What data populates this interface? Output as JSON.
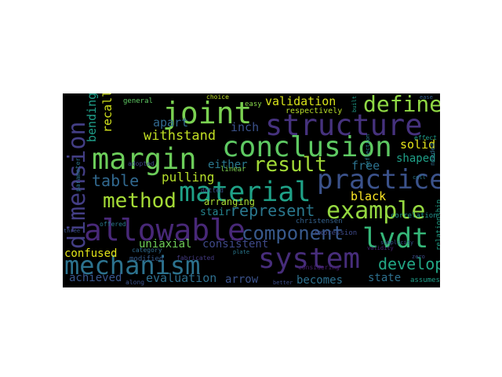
{
  "words": [
    {
      "text": "structure",
      "color": "#46327e"
    },
    {
      "text": "conclusion",
      "color": "#5ec962"
    },
    {
      "text": "joint",
      "color": "#7ad151"
    },
    {
      "text": "margin",
      "color": "#6ccd5a"
    },
    {
      "text": "material",
      "color": "#1fa187"
    },
    {
      "text": "practice",
      "color": "#3b528b"
    },
    {
      "text": "allowable",
      "color": "#482878"
    },
    {
      "text": "mechanism",
      "color": "#2c728e"
    },
    {
      "text": "system",
      "color": "#472d7b"
    },
    {
      "text": "example",
      "color": "#95d840"
    },
    {
      "text": "lvdt",
      "color": "#35b779"
    },
    {
      "text": "define",
      "color": "#8fd744"
    },
    {
      "text": "result",
      "color": "#a2da37"
    },
    {
      "text": "method",
      "color": "#a5db36"
    },
    {
      "text": "component",
      "color": "#38598c"
    },
    {
      "text": "dimension",
      "color": "#433e85"
    },
    {
      "text": "represent",
      "color": "#2a788e"
    },
    {
      "text": "develop",
      "color": "#22a785"
    },
    {
      "text": "table",
      "color": "#31688e"
    },
    {
      "text": "validation",
      "color": "#d8e219"
    },
    {
      "text": "withstand",
      "color": "#c2df23"
    },
    {
      "text": "pulling",
      "color": "#b5de2b"
    },
    {
      "text": "apart",
      "color": "#31688e"
    },
    {
      "text": "inch",
      "color": "#3b528b"
    },
    {
      "text": "either",
      "color": "#2a788e"
    },
    {
      "text": "bending",
      "color": "#1f9e89"
    },
    {
      "text": "recall",
      "color": "#d2e21b"
    },
    {
      "text": "free",
      "color": "#2c728e"
    },
    {
      "text": "solid",
      "color": "#e5e419"
    },
    {
      "text": "shaped",
      "color": "#1fa188"
    },
    {
      "text": "black",
      "color": "#fde725"
    },
    {
      "text": "arranging",
      "color": "#a8db34"
    },
    {
      "text": "stair",
      "color": "#25848e"
    },
    {
      "text": "uniaxial",
      "color": "#6ece58"
    },
    {
      "text": "consistent",
      "color": "#3e4989"
    },
    {
      "text": "confused",
      "color": "#e2e418"
    },
    {
      "text": "achieved",
      "color": "#39558c"
    },
    {
      "text": "evaluation",
      "color": "#2e6f8e"
    },
    {
      "text": "arrow",
      "color": "#3b528b"
    },
    {
      "text": "becomes",
      "color": "#2d708e"
    },
    {
      "text": "state",
      "color": "#2d708e"
    },
    {
      "text": "general",
      "color": "#5ec962"
    },
    {
      "text": "respectively",
      "color": "#b8de29"
    },
    {
      "text": "easy",
      "color": "#86d549"
    },
    {
      "text": "linear",
      "color": "#7fd34e"
    },
    {
      "text": "relationship",
      "color": "#1fa187"
    },
    {
      "text": "christensen",
      "color": "#34618d"
    },
    {
      "text": "expression",
      "color": "#3e4989"
    },
    {
      "text": "correlation",
      "color": "#21918c"
    },
    {
      "text": "modified",
      "color": "#365c8d"
    },
    {
      "text": "offered",
      "color": "#2a788e"
    },
    {
      "text": "considering",
      "color": "#481f70"
    },
    {
      "text": "assumes",
      "color": "#1f9e89"
    },
    {
      "text": "fabricated",
      "color": "#443a83"
    },
    {
      "text": "adopted",
      "color": "#3f4788"
    },
    {
      "text": "parameter",
      "color": "#2c728e"
    },
    {
      "text": "category",
      "color": "#2f6b8e"
    },
    {
      "text": "dotted",
      "color": "#3b528b"
    },
    {
      "text": "choice",
      "color": "#c0df25"
    },
    {
      "text": "along",
      "color": "#3b528b"
    },
    {
      "text": "effect",
      "color": "#1e9b8a"
    },
    {
      "text": "deflection",
      "color": "#277f8e"
    },
    {
      "text": "validity",
      "color": "#482475"
    },
    {
      "text": "simplicity",
      "color": "#3a548c"
    },
    {
      "text": "better",
      "color": "#3d4d8a"
    },
    {
      "text": "zero",
      "color": "#3e4a89"
    },
    {
      "text": "plate",
      "color": "#2a788e"
    },
    {
      "text": "cell",
      "color": "#29798e"
    },
    {
      "text": "ease",
      "color": "#355f8d"
    },
    {
      "text": "built",
      "color": "#1e9c89"
    },
    {
      "text": "three",
      "color": "#3b528b"
    },
    {
      "text": "needed",
      "color": "#2e6e8e"
    }
  ]
}
